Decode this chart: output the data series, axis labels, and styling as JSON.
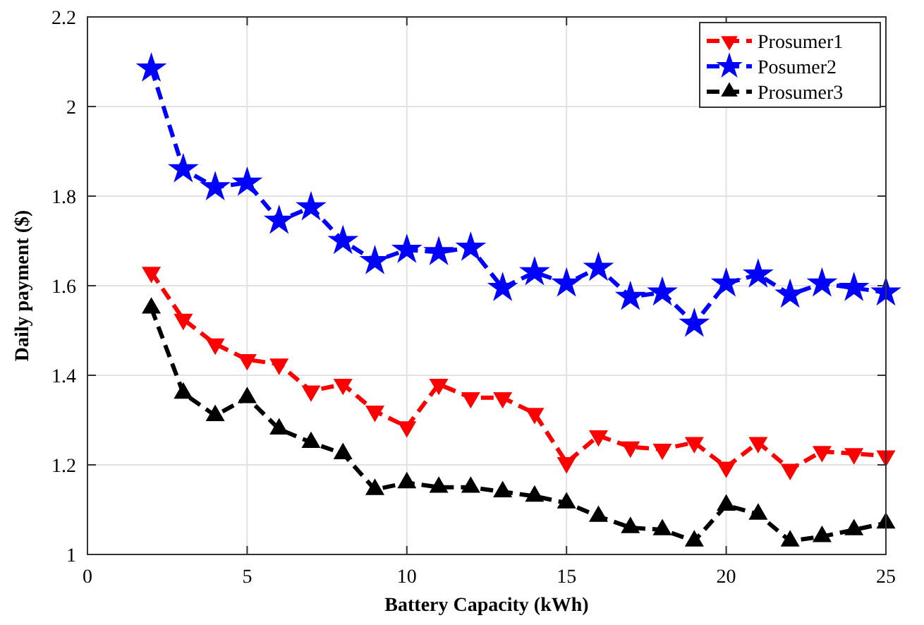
{
  "chart_data": {
    "type": "line",
    "xlabel": "Battery Capacity (kWh)",
    "ylabel": "Daily payment ($)",
    "x": [
      2,
      3,
      4,
      5,
      6,
      7,
      8,
      9,
      10,
      11,
      12,
      13,
      14,
      15,
      16,
      17,
      18,
      19,
      20,
      21,
      22,
      23,
      24,
      25
    ],
    "series": [
      {
        "name": "Prosumer1",
        "color": "#ff0000",
        "marker": "triangle-down",
        "values": [
          1.63,
          1.525,
          1.47,
          1.435,
          1.425,
          1.365,
          1.38,
          1.32,
          1.285,
          1.38,
          1.35,
          1.35,
          1.315,
          1.205,
          1.265,
          1.24,
          1.235,
          1.25,
          1.195,
          1.25,
          1.19,
          1.23,
          1.225,
          1.22
        ]
      },
      {
        "name": "Posumer2",
        "color": "#0000ff",
        "marker": "star",
        "values": [
          2.085,
          1.86,
          1.82,
          1.83,
          1.745,
          1.775,
          1.7,
          1.655,
          1.68,
          1.675,
          1.685,
          1.595,
          1.63,
          1.605,
          1.64,
          1.575,
          1.585,
          1.515,
          1.605,
          1.625,
          1.58,
          1.605,
          1.595,
          1.585
        ]
      },
      {
        "name": "Prosumer3",
        "color": "#000000",
        "marker": "triangle",
        "values": [
          1.55,
          1.36,
          1.31,
          1.35,
          1.28,
          1.25,
          1.225,
          1.145,
          1.16,
          1.15,
          1.15,
          1.14,
          1.13,
          1.115,
          1.085,
          1.06,
          1.055,
          1.03,
          1.11,
          1.09,
          1.03,
          1.04,
          1.055,
          1.07
        ]
      }
    ],
    "xlim": [
      0,
      25
    ],
    "xticks": [
      0,
      5,
      10,
      15,
      20,
      25
    ],
    "ylim": [
      1,
      2.2
    ],
    "yticks": [
      1,
      1.2,
      1.4,
      1.6,
      1.8,
      2,
      2.2
    ],
    "grid": true,
    "legend": "top right",
    "line_style": "dashed"
  }
}
